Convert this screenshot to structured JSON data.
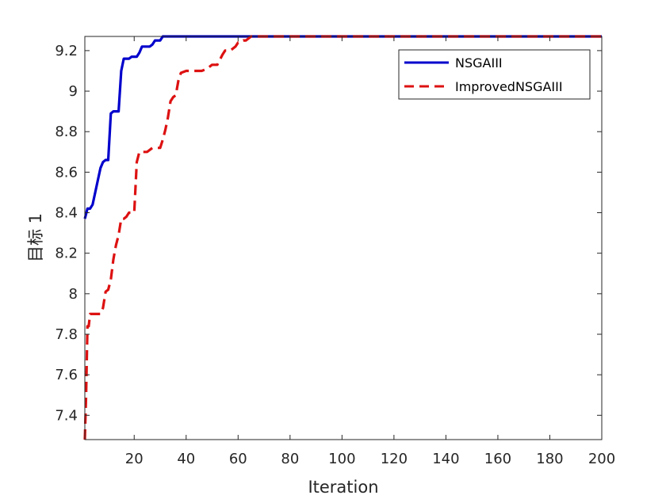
{
  "chart_data": {
    "type": "line",
    "title": "",
    "xlabel": "Iteration",
    "ylabel": "目标 1",
    "xlim": [
      1,
      200
    ],
    "ylim": [
      7.28,
      9.27
    ],
    "xticks": [
      20,
      40,
      60,
      80,
      100,
      120,
      140,
      160,
      180,
      200
    ],
    "yticks": [
      7.4,
      7.6,
      7.8,
      8,
      8.2,
      8.4,
      8.6,
      8.8,
      9,
      9.2
    ],
    "grid": false,
    "legend_position": "top-right",
    "series": [
      {
        "name": "NSGAIII",
        "color": "#0000cc",
        "dash": "solid",
        "x": [
          1,
          2,
          3,
          4,
          5,
          6,
          7,
          8,
          9,
          10,
          11,
          12,
          13,
          14,
          15,
          16,
          17,
          18,
          19,
          20,
          21,
          22,
          23,
          24,
          25,
          26,
          27,
          28,
          29,
          30,
          31,
          32,
          34,
          40,
          60,
          100,
          150,
          200
        ],
        "values": [
          8.37,
          8.42,
          8.42,
          8.44,
          8.5,
          8.56,
          8.62,
          8.65,
          8.66,
          8.66,
          8.89,
          8.9,
          8.9,
          8.9,
          9.1,
          9.16,
          9.16,
          9.16,
          9.17,
          9.17,
          9.17,
          9.19,
          9.22,
          9.22,
          9.22,
          9.22,
          9.23,
          9.25,
          9.25,
          9.25,
          9.27,
          9.27,
          9.27,
          9.27,
          9.27,
          9.27,
          9.27,
          9.27
        ]
      },
      {
        "name": "ImprovedNSGAIII",
        "color": "#dd1111",
        "dash": "dashed",
        "x": [
          1,
          1.5,
          2,
          2.5,
          3,
          4,
          5,
          6,
          7,
          8,
          9,
          10,
          11,
          12,
          13,
          14,
          15,
          16,
          17,
          18,
          19,
          20,
          21,
          22,
          23,
          24,
          25,
          26,
          27,
          28,
          29,
          30,
          31,
          32,
          33,
          34,
          35,
          36,
          37,
          38,
          40,
          42,
          44,
          46,
          48,
          50,
          52,
          54,
          55,
          56,
          57,
          58,
          59,
          60,
          61,
          62,
          63,
          64,
          65,
          70,
          100,
          150,
          200
        ],
        "values": [
          7.28,
          7.5,
          7.84,
          7.84,
          7.9,
          7.9,
          7.9,
          7.9,
          7.9,
          7.93,
          8.01,
          8.02,
          8.07,
          8.17,
          8.24,
          8.29,
          8.37,
          8.37,
          8.38,
          8.4,
          8.4,
          8.4,
          8.65,
          8.7,
          8.7,
          8.7,
          8.7,
          8.71,
          8.72,
          8.72,
          8.72,
          8.72,
          8.76,
          8.81,
          8.87,
          8.95,
          8.97,
          8.98,
          9.05,
          9.09,
          9.1,
          9.1,
          9.1,
          9.1,
          9.11,
          9.13,
          9.13,
          9.18,
          9.2,
          9.2,
          9.2,
          9.21,
          9.22,
          9.24,
          9.24,
          9.25,
          9.25,
          9.26,
          9.27,
          9.27,
          9.27,
          9.27,
          9.27
        ]
      }
    ]
  }
}
